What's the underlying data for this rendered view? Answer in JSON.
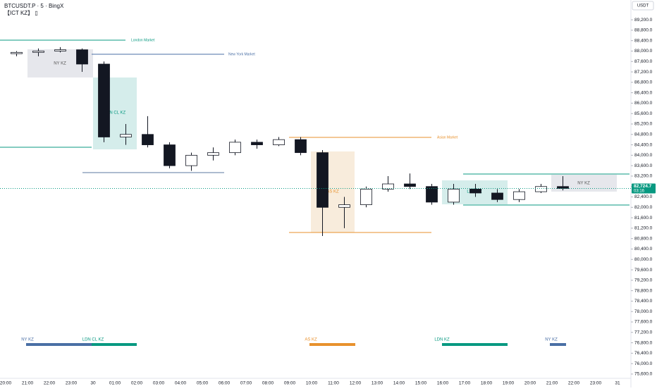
{
  "chart_data": {
    "type": "candlestick",
    "title": "BTCUSDT.P · 5 · BingX",
    "subtitle": "【ICT KZ】 ▯",
    "currency_button": "USDT",
    "categories": [
      "20:00",
      "21:00",
      "22:00",
      "23:00",
      "30",
      "01:00",
      "02:00",
      "03:00",
      "04:00",
      "05:00",
      "06:00",
      "07:00",
      "08:00",
      "09:00",
      "10:00",
      "11:00",
      "12:00",
      "13:00",
      "14:00",
      "15:00",
      "16:00",
      "17:00",
      "18:00",
      "19:00",
      "20:00",
      "21:00",
      "22:00",
      "23:00",
      "31"
    ],
    "open": [
      87900,
      87950,
      88000,
      88050,
      87500,
      84700,
      84800,
      84400,
      83600,
      84000,
      84100,
      84500,
      84400,
      84600,
      84100,
      82000,
      82100,
      82700,
      82900,
      82800,
      82200,
      82700,
      82550,
      82300,
      82600,
      82800,
      null,
      null,
      null
    ],
    "high": [
      88000,
      88100,
      88150,
      88100,
      87600,
      85200,
      85500,
      84500,
      84100,
      84300,
      84600,
      84600,
      84700,
      84700,
      84200,
      82400,
      82800,
      83200,
      83300,
      82900,
      82900,
      82900,
      82700,
      82700,
      82900,
      83200,
      null,
      null,
      null
    ],
    "low": [
      87800,
      87800,
      87950,
      87200,
      84500,
      84400,
      84300,
      83500,
      83400,
      83800,
      84000,
      84250,
      84350,
      84000,
      80900,
      81200,
      82000,
      82600,
      82700,
      82100,
      82100,
      82400,
      82200,
      82200,
      82550,
      82650,
      null,
      null,
      null
    ],
    "close": [
      87950,
      88000,
      88050,
      87500,
      84700,
      84800,
      84400,
      83600,
      84000,
      84100,
      84500,
      84400,
      84600,
      84100,
      82000,
      82100,
      82700,
      82900,
      82800,
      82200,
      82700,
      82550,
      82300,
      82600,
      82800,
      82724.7,
      null,
      null,
      null
    ],
    "up_color": "#ffffff",
    "down_color": "#131722",
    "last_price": {
      "value": 82724.7,
      "label": "82,724.7"
    },
    "countdown": "03:16",
    "ylim": [
      75490,
      89960
    ],
    "yticks": [
      {
        "value": 75600,
        "label": "75,600.0"
      },
      {
        "value": 76000,
        "label": "76,000.0"
      },
      {
        "value": 76400,
        "label": "76,400.0"
      },
      {
        "value": 76800,
        "label": "76,800.0"
      },
      {
        "value": 77200,
        "label": "77,200.0"
      },
      {
        "value": 77600,
        "label": "77,600.0"
      },
      {
        "value": 78000,
        "label": "78,000.0"
      },
      {
        "value": 78400,
        "label": "78,400.0"
      },
      {
        "value": 78800,
        "label": "78,800.0"
      },
      {
        "value": 79200,
        "label": "79,200.0"
      },
      {
        "value": 79600,
        "label": "79,600.0"
      },
      {
        "value": 80000,
        "label": "80,000.0"
      },
      {
        "value": 80400,
        "label": "80,400.0"
      },
      {
        "value": 80800,
        "label": "80,800.0"
      },
      {
        "value": 81200,
        "label": "81,200.0"
      },
      {
        "value": 81600,
        "label": "81,600.0"
      },
      {
        "value": 82000,
        "label": "82,000.0"
      },
      {
        "value": 82400,
        "label": "82,400.0"
      },
      {
        "value": 82800,
        "label": "82,800.0"
      },
      {
        "value": 83200,
        "label": "83,200.0"
      },
      {
        "value": 83600,
        "label": "83,600.0"
      },
      {
        "value": 84000,
        "label": "84,000.0"
      },
      {
        "value": 84400,
        "label": "84,400.0"
      },
      {
        "value": 84800,
        "label": "84,800.0"
      },
      {
        "value": 85200,
        "label": "85,200.0"
      },
      {
        "value": 85600,
        "label": "85,600.0"
      },
      {
        "value": 86000,
        "label": "86,000.0"
      },
      {
        "value": 86400,
        "label": "86,400.0"
      },
      {
        "value": 86800,
        "label": "86,800.0"
      },
      {
        "value": 87200,
        "label": "87,200.0"
      },
      {
        "value": 87600,
        "label": "87,600.0"
      },
      {
        "value": 88000,
        "label": "88,000.0"
      },
      {
        "value": 88400,
        "label": "88,400.0"
      },
      {
        "value": 88800,
        "label": "88,800.0"
      },
      {
        "value": 89200,
        "label": "89,200.0"
      }
    ],
    "grid": false,
    "annotations": {
      "london_market": "London Market",
      "new_york_market": "New York Market",
      "asian_market": "Asian Market",
      "box_ny_1": "NY KZ",
      "box_ldn_cl": "LDN CL KZ",
      "box_as": "AS KZ",
      "box_ldn": "LDN KZ",
      "box_ny_2": "NY KZ",
      "bar_ny_1": "NY KZ",
      "bar_ldn_cl": "LDN CL KZ",
      "bar_as": "AS KZ",
      "bar_ldn": "LDN KZ",
      "bar_ny_2": "NY KZ"
    }
  }
}
